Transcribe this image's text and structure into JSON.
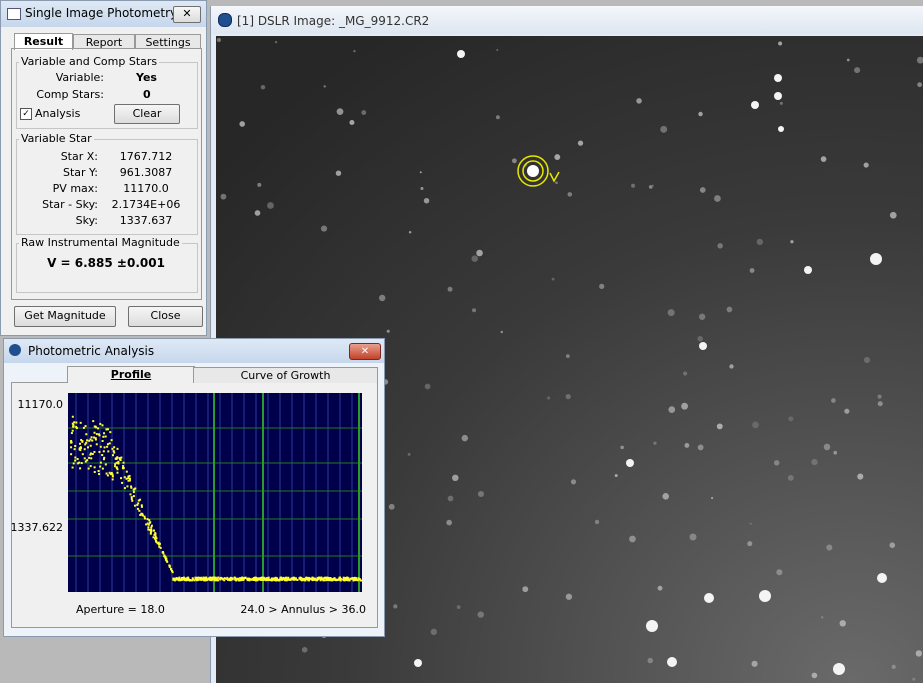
{
  "photometry_window": {
    "title": "Single Image Photometry",
    "tabs": [
      "Result",
      "Report",
      "Settings"
    ],
    "comp_group": {
      "title": "Variable and Comp Stars",
      "rows": [
        [
          "Variable:",
          "Yes"
        ],
        [
          "Comp Stars:",
          "0"
        ]
      ],
      "checkbox": "Analysis",
      "button": "Clear"
    },
    "variable_star": {
      "title": "Variable Star",
      "rows": [
        [
          "Star X:",
          "1767.712"
        ],
        [
          "Star Y:",
          "961.3087"
        ],
        [
          "PV max:",
          "11170.0"
        ],
        [
          "Star - Sky:",
          "2.1734E+06"
        ],
        [
          "Sky:",
          "1337.637"
        ]
      ]
    },
    "magnitude": {
      "title": "Raw Instrumental Magnitude",
      "value": "V = 6.885 ±0.001"
    },
    "buttons": [
      "Get Magnitude",
      "Close"
    ]
  },
  "image_window": {
    "title": "[1] DSLR Image: _MG_9912.CR2"
  },
  "analysis_window": {
    "title": "Photometric Analysis",
    "tabs": [
      "Profile",
      "Curve of Growth"
    ],
    "y_labels": [
      "11170.0",
      "1337.622"
    ],
    "aperture": "Aperture = 18.0",
    "annulus": "24.0 > Annulus > 36.0"
  }
}
